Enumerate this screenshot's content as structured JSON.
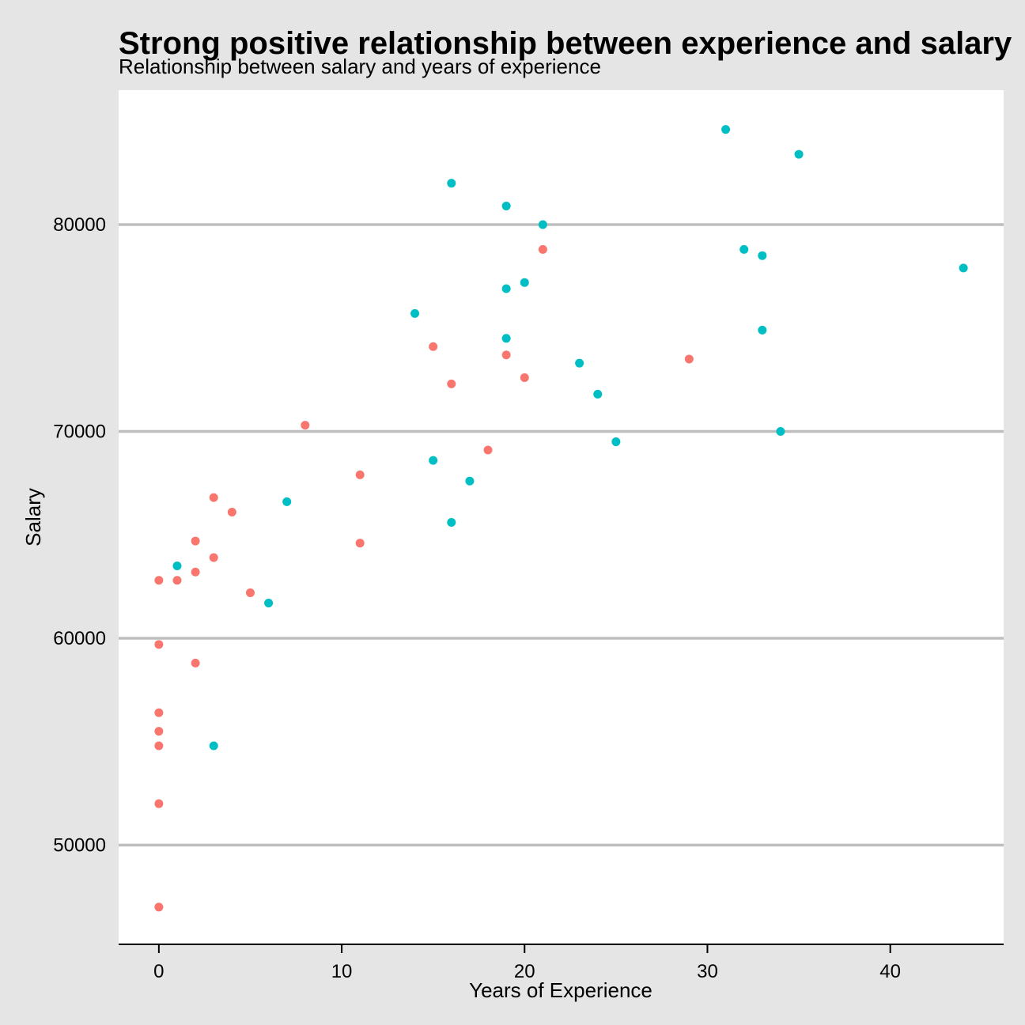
{
  "chart_data": {
    "type": "scatter",
    "title": "Strong positive relationship between experience and salary",
    "subtitle": "Relationship between salary and years of experience",
    "xlabel": "Years of Experience",
    "ylabel": "Salary",
    "xlim": [
      -2.2,
      46.2
    ],
    "ylim": [
      45200,
      86500
    ],
    "xticks": [
      0,
      10,
      20,
      30,
      40
    ],
    "yticks": [
      50000,
      60000,
      70000,
      80000
    ],
    "grid": "horizontal major",
    "legend": "none",
    "colors": {
      "background": "#e5e5e5",
      "panel": "#ffffff",
      "grid": "#bebebe",
      "axis": "#000000"
    },
    "series": [
      {
        "color": "#f8766d",
        "points": [
          {
            "x": 0,
            "y": 62800
          },
          {
            "x": 0,
            "y": 59700
          },
          {
            "x": 0,
            "y": 56400
          },
          {
            "x": 0,
            "y": 55500
          },
          {
            "x": 0,
            "y": 54800
          },
          {
            "x": 0,
            "y": 52000
          },
          {
            "x": 0,
            "y": 47000
          },
          {
            "x": 1,
            "y": 62800
          },
          {
            "x": 2,
            "y": 64700
          },
          {
            "x": 2,
            "y": 63200
          },
          {
            "x": 2,
            "y": 58800
          },
          {
            "x": 3,
            "y": 66800
          },
          {
            "x": 3,
            "y": 63900
          },
          {
            "x": 4,
            "y": 66100
          },
          {
            "x": 5,
            "y": 62200
          },
          {
            "x": 8,
            "y": 70300
          },
          {
            "x": 11,
            "y": 67900
          },
          {
            "x": 11,
            "y": 64600
          },
          {
            "x": 15,
            "y": 74100
          },
          {
            "x": 16,
            "y": 72300
          },
          {
            "x": 18,
            "y": 69100
          },
          {
            "x": 19,
            "y": 73700
          },
          {
            "x": 20,
            "y": 72600
          },
          {
            "x": 21,
            "y": 78800
          },
          {
            "x": 29,
            "y": 73500
          }
        ]
      },
      {
        "color": "#00bfc4",
        "points": [
          {
            "x": 1,
            "y": 63500
          },
          {
            "x": 3,
            "y": 54800
          },
          {
            "x": 6,
            "y": 61700
          },
          {
            "x": 7,
            "y": 66600
          },
          {
            "x": 14,
            "y": 75700
          },
          {
            "x": 15,
            "y": 68600
          },
          {
            "x": 16,
            "y": 65600
          },
          {
            "x": 16,
            "y": 82000
          },
          {
            "x": 17,
            "y": 67600
          },
          {
            "x": 19,
            "y": 80900
          },
          {
            "x": 19,
            "y": 76900
          },
          {
            "x": 19,
            "y": 74500
          },
          {
            "x": 20,
            "y": 77200
          },
          {
            "x": 21,
            "y": 80000
          },
          {
            "x": 23,
            "y": 73300
          },
          {
            "x": 24,
            "y": 71800
          },
          {
            "x": 25,
            "y": 69500
          },
          {
            "x": 31,
            "y": 84600
          },
          {
            "x": 32,
            "y": 78800
          },
          {
            "x": 33,
            "y": 78500
          },
          {
            "x": 33,
            "y": 74900
          },
          {
            "x": 34,
            "y": 70000
          },
          {
            "x": 35,
            "y": 83400
          },
          {
            "x": 44,
            "y": 77900
          }
        ]
      }
    ]
  }
}
